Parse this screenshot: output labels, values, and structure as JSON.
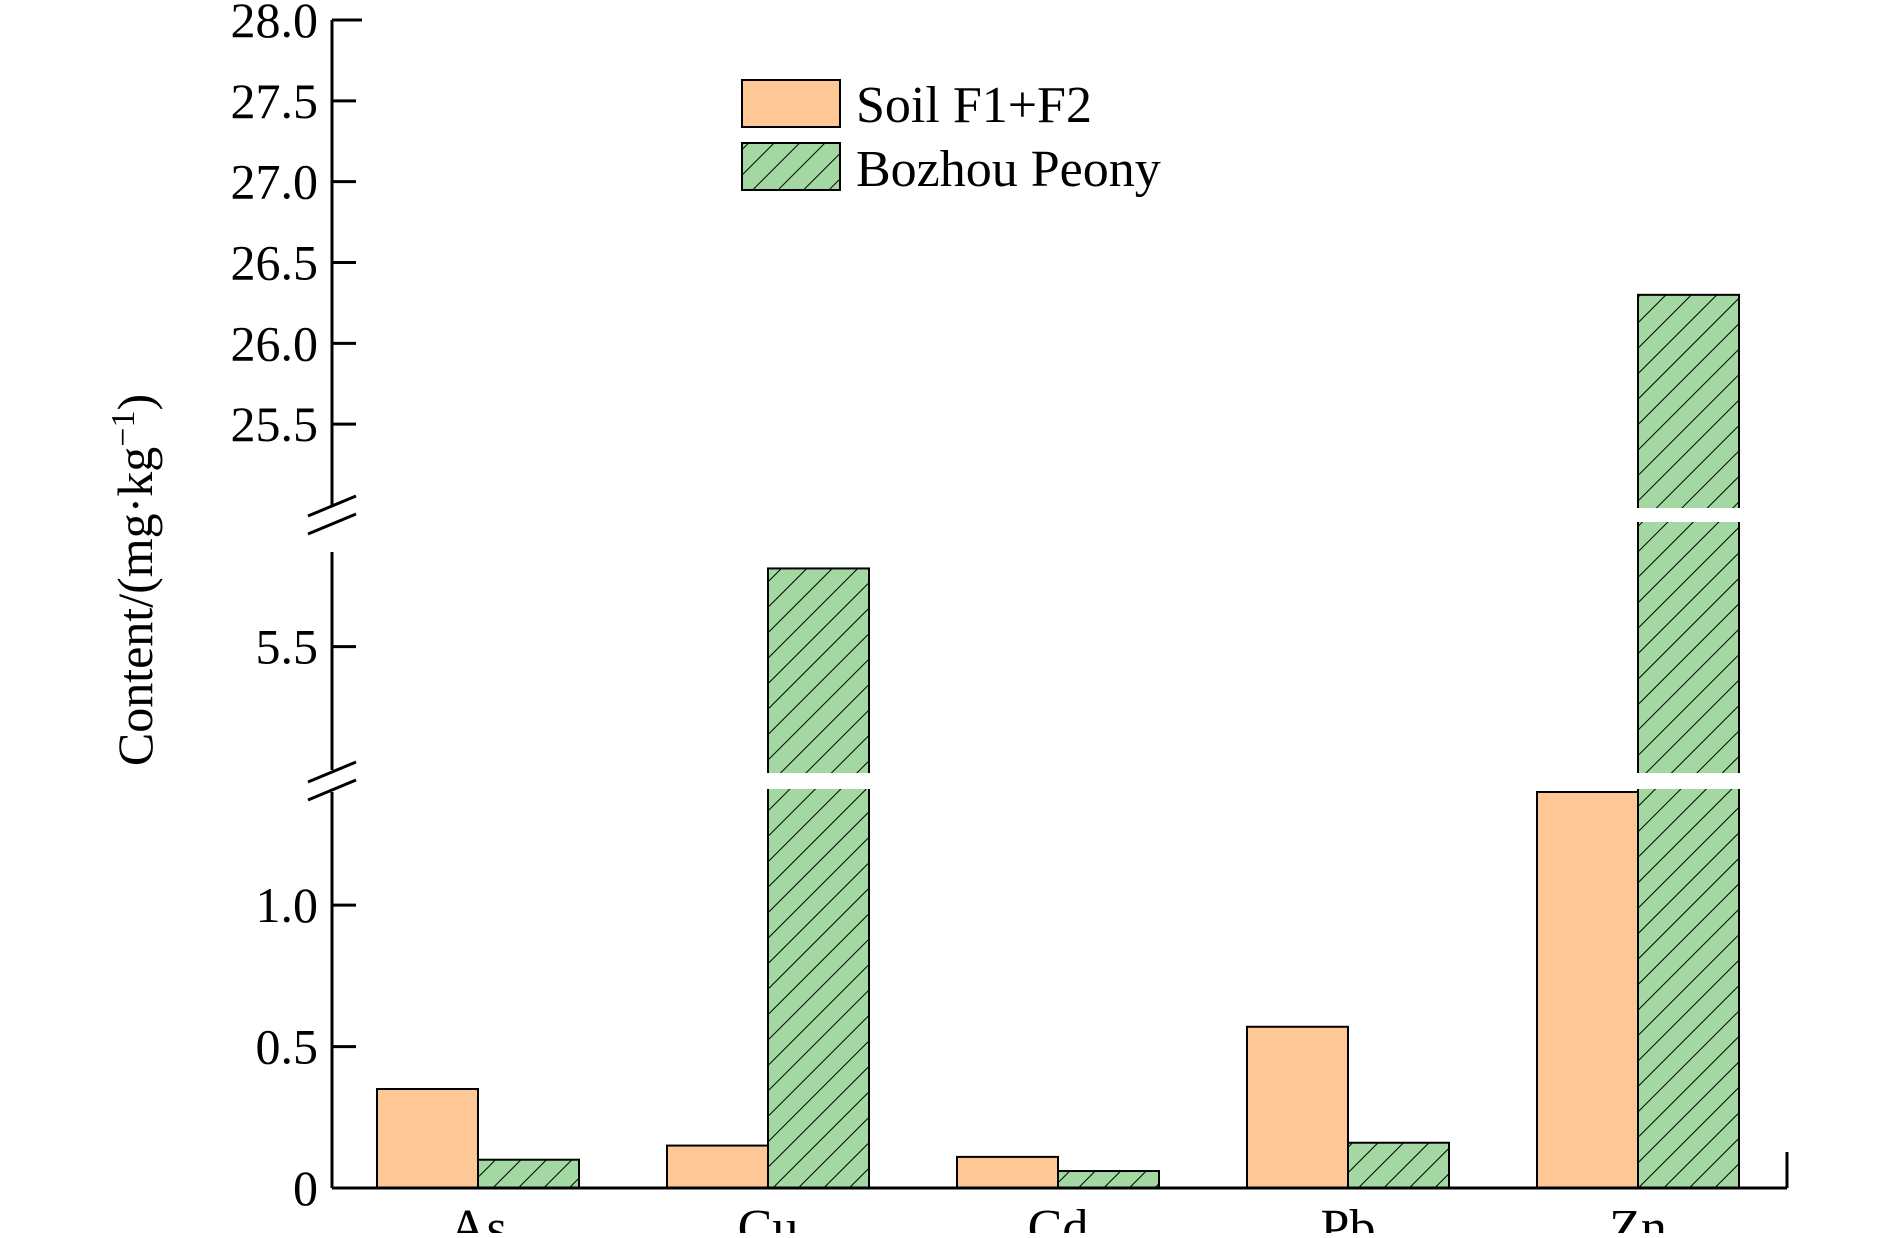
{
  "chart_data": {
    "type": "bar",
    "title": "",
    "xlabel": "",
    "ylabel": "Content/(mg·kg",
    "ylabel_sup": "−1",
    "ylabel_close": ")",
    "categories": [
      "As",
      "Cu",
      "Cd",
      "Pb",
      "Zn"
    ],
    "series": [
      {
        "name": "Soil F1+F2",
        "values": [
          0.35,
          0.15,
          0.11,
          0.57,
          1.4
        ],
        "color": "#FDC896",
        "pattern": "solid"
      },
      {
        "name": "Bozhou Peony",
        "values": [
          0.1,
          5.69,
          0.06,
          0.16,
          26.3
        ],
        "color": "#A3D8A3",
        "pattern": "hatch"
      }
    ],
    "y_axis_broken": true,
    "y_segments": [
      {
        "range": [
          0,
          1.4
        ],
        "ticks": [
          0,
          0.5,
          1.0
        ],
        "tick_labels": [
          "0",
          "0.5",
          "1.0"
        ]
      },
      {
        "range": [
          5.2,
          5.73
        ],
        "ticks": [
          5.5
        ],
        "tick_labels": [
          "5.5"
        ]
      },
      {
        "range": [
          25.0,
          28.0
        ],
        "ticks": [
          25.5,
          26.0,
          26.5,
          27.0,
          27.5,
          28.0
        ],
        "tick_labels": [
          "25.5",
          "26.0",
          "26.5",
          "27.0",
          "27.5",
          "28.0"
        ]
      }
    ],
    "legend_position": "top-center",
    "grid": false
  }
}
